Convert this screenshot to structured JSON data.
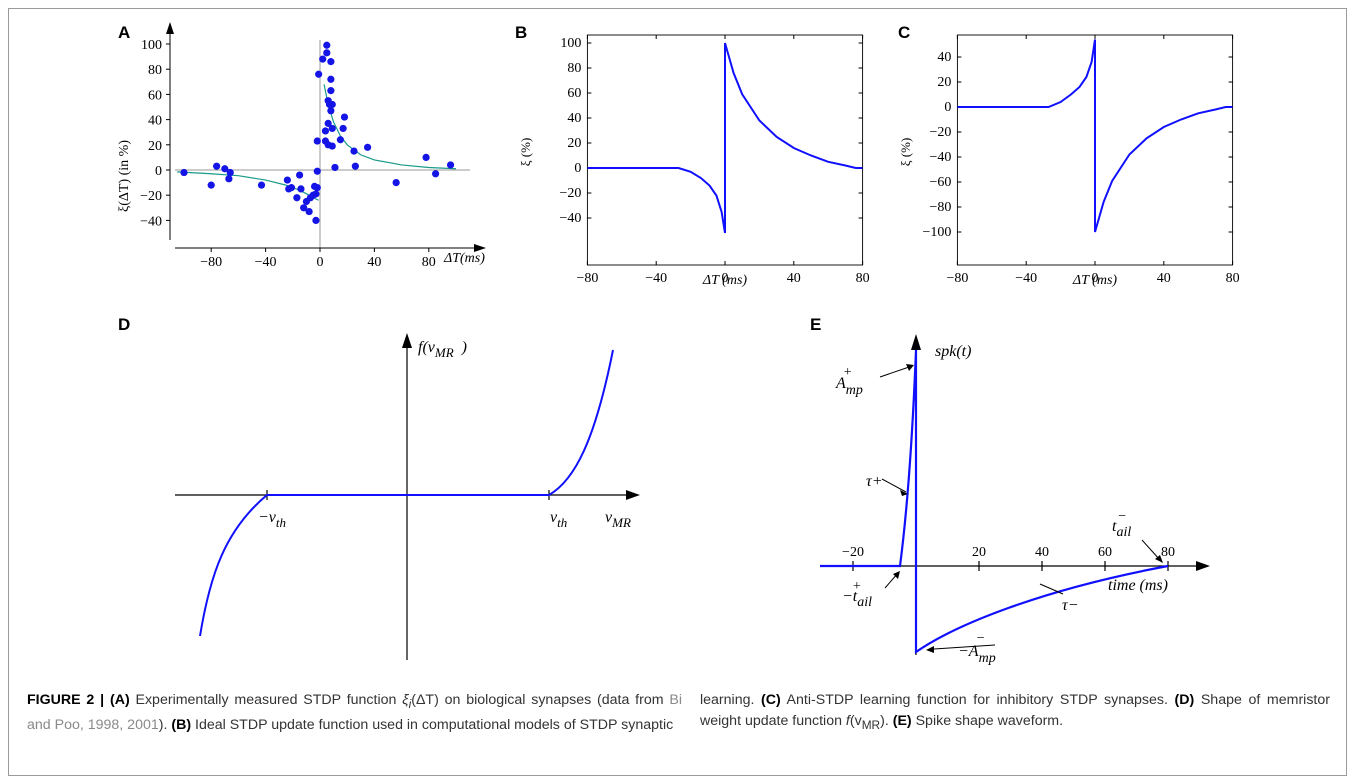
{
  "colors": {
    "curve": "#1010ff",
    "points": "#1414e6",
    "fit": "#1a9a8a",
    "axis": "#000000"
  },
  "panels": {
    "A": {
      "letter": "A",
      "ylabel": "ξ(ΔT)   (in %)",
      "xlabel": "ΔT(ms)",
      "xticks": [
        "−80",
        "−40",
        "0",
        "40",
        "80"
      ],
      "yticks": [
        "100",
        "80",
        "60",
        "40",
        "20",
        "0",
        "−20",
        "−40"
      ]
    },
    "B": {
      "letter": "B",
      "ylabel": "ξ (%)",
      "xlabel": "ΔT (ms)",
      "xticks": [
        "−80",
        "−40",
        "0",
        "40",
        "80"
      ],
      "yticks": [
        "100",
        "80",
        "60",
        "40",
        "20",
        "0",
        "−20",
        "−40"
      ]
    },
    "C": {
      "letter": "C",
      "ylabel": "ξ (%)",
      "xlabel": "ΔT (ms)",
      "xticks": [
        "−80",
        "−40",
        "0",
        "40",
        "80"
      ],
      "yticks": [
        "40",
        "20",
        "0",
        "−20",
        "−40",
        "−60",
        "−80",
        "−100"
      ]
    },
    "D": {
      "letter": "D",
      "yaxis_label": "f(v",
      "yaxis_sub": "MR",
      "yaxis_close": ")",
      "neg_th": "−v",
      "pos_th": "v",
      "th_sub": "th",
      "x_label": "v",
      "x_sub": "MR"
    },
    "E": {
      "letter": "E",
      "yaxis_label": "spk(t)",
      "xaxis_label": "time (ms)",
      "xticks": [
        "−20",
        "20",
        "40",
        "60",
        "80"
      ],
      "a_plus": "A",
      "a_plus_sub": "mp",
      "a_plus_sup": "+",
      "tau_plus": "τ+",
      "tau_minus": "τ−",
      "t_ail_minus": "t",
      "t_ail_minus_sub": "ail",
      "t_ail_minus_sup": "−",
      "t_ail_plus": "−t",
      "t_ail_plus_sub": "ail",
      "t_ail_plus_sup": "+",
      "a_minus": "−A",
      "a_minus_sub": "mp",
      "a_minus_sup": "−"
    }
  },
  "chart_data": [
    {
      "panel": "A",
      "type": "scatter",
      "title": "",
      "xlabel": "ΔT(ms)",
      "ylabel": "ξ(ΔT) (in %)",
      "xlim": [
        -105,
        100
      ],
      "ylim": [
        -55,
        105
      ],
      "points": [
        [
          -100,
          -2
        ],
        [
          -80,
          -12
        ],
        [
          -76,
          3
        ],
        [
          -70,
          1
        ],
        [
          -67,
          -7
        ],
        [
          -66,
          -2
        ],
        [
          -43,
          -12
        ],
        [
          -24,
          -8
        ],
        [
          -23,
          -15
        ],
        [
          -21,
          -14
        ],
        [
          -17,
          -22
        ],
        [
          -15,
          -4
        ],
        [
          -14,
          -15
        ],
        [
          -12,
          -30
        ],
        [
          -10,
          -25
        ],
        [
          -8,
          -33
        ],
        [
          -7,
          -22
        ],
        [
          -5,
          -20
        ],
        [
          -4,
          -13
        ],
        [
          -3,
          -19
        ],
        [
          -3,
          -40
        ],
        [
          -2,
          -14
        ],
        [
          -2,
          -1
        ],
        [
          -2,
          23
        ],
        [
          -1,
          76
        ],
        [
          2,
          88
        ],
        [
          4,
          31
        ],
        [
          4,
          23
        ],
        [
          5,
          99
        ],
        [
          5,
          93
        ],
        [
          6,
          55
        ],
        [
          6,
          37
        ],
        [
          6,
          20
        ],
        [
          7,
          52
        ],
        [
          8,
          86
        ],
        [
          8,
          72
        ],
        [
          8,
          63
        ],
        [
          8,
          47
        ],
        [
          9,
          52
        ],
        [
          9,
          33
        ],
        [
          9,
          19
        ],
        [
          11,
          2
        ],
        [
          15,
          24
        ],
        [
          17,
          33
        ],
        [
          18,
          42
        ],
        [
          25,
          15
        ],
        [
          26,
          3
        ],
        [
          35,
          18
        ],
        [
          56,
          -10
        ],
        [
          78,
          10
        ],
        [
          85,
          -3
        ],
        [
          96,
          4
        ]
      ],
      "fit_series": [
        {
          "name": "",
          "x": [
            -105,
            -80,
            -60,
            -40,
            -25,
            -15,
            -8,
            -3,
            -1
          ],
          "y": [
            -1.5,
            -3,
            -4.5,
            -8,
            -12,
            -16,
            -20,
            -23,
            -24
          ]
        },
        {
          "name": "",
          "x": [
            3,
            6,
            10,
            15,
            20,
            30,
            40,
            60,
            80,
            100
          ],
          "y": [
            68,
            52,
            38,
            27,
            20,
            12,
            8,
            4,
            2,
            1
          ]
        }
      ]
    },
    {
      "panel": "B",
      "type": "line",
      "title": "",
      "xlabel": "ΔT (ms)",
      "ylabel": "ξ (%)",
      "xlim": [
        -80,
        80
      ],
      "ylim": [
        -55,
        110
      ],
      "series": [
        {
          "name": "",
          "x": [
            -80,
            -27,
            -20,
            -14,
            -9,
            -5,
            -2,
            0,
            0,
            5,
            10,
            20,
            30,
            40,
            50,
            60,
            70,
            76,
            80
          ],
          "y": [
            0,
            0,
            -3,
            -8,
            -14,
            -22,
            -35,
            -52,
            100,
            76,
            59,
            38,
            25,
            16,
            10,
            5,
            2,
            0,
            0
          ]
        }
      ]
    },
    {
      "panel": "C",
      "type": "line",
      "title": "",
      "xlabel": "ΔT (ms)",
      "ylabel": "ξ (%)",
      "xlim": [
        -80,
        80
      ],
      "ylim": [
        -110,
        60
      ],
      "series": [
        {
          "name": "",
          "x": [
            -80,
            -27,
            -20,
            -14,
            -9,
            -5,
            -2,
            0,
            0,
            5,
            10,
            20,
            30,
            40,
            50,
            60,
            70,
            76,
            80
          ],
          "y": [
            0,
            0,
            4,
            10,
            16,
            24,
            36,
            54,
            -100,
            -76,
            -59,
            -38,
            -25,
            -16,
            -10,
            -5,
            -2,
            0,
            0
          ]
        }
      ]
    }
  ],
  "caption": {
    "fig": "FIGURE 2 |",
    "a": "(A)",
    "t1": " Experimentally measured STDP function ",
    "xi": "ξ",
    "xi_sub": "i",
    "arg": "(ΔT)",
    "t2": " on biological synapses (data from ",
    "ref": "Bi and Poo, 1998, 2001",
    "t3": "). ",
    "b": "(B)",
    "t4": " Ideal STDP update function used in computational models of STDP synaptic",
    "t5": "learning. ",
    "c": "(C)",
    "t6": " Anti-STDP learning function for inhibitory STDP synapses. ",
    "d": "(D)",
    "t7": " Shape of memristor weight update function ",
    "f": "f",
    "f_arg": "(v",
    "f_sub": "MR",
    "f_close": ").",
    "e": "(E)",
    "t8": " Spike shape waveform."
  }
}
